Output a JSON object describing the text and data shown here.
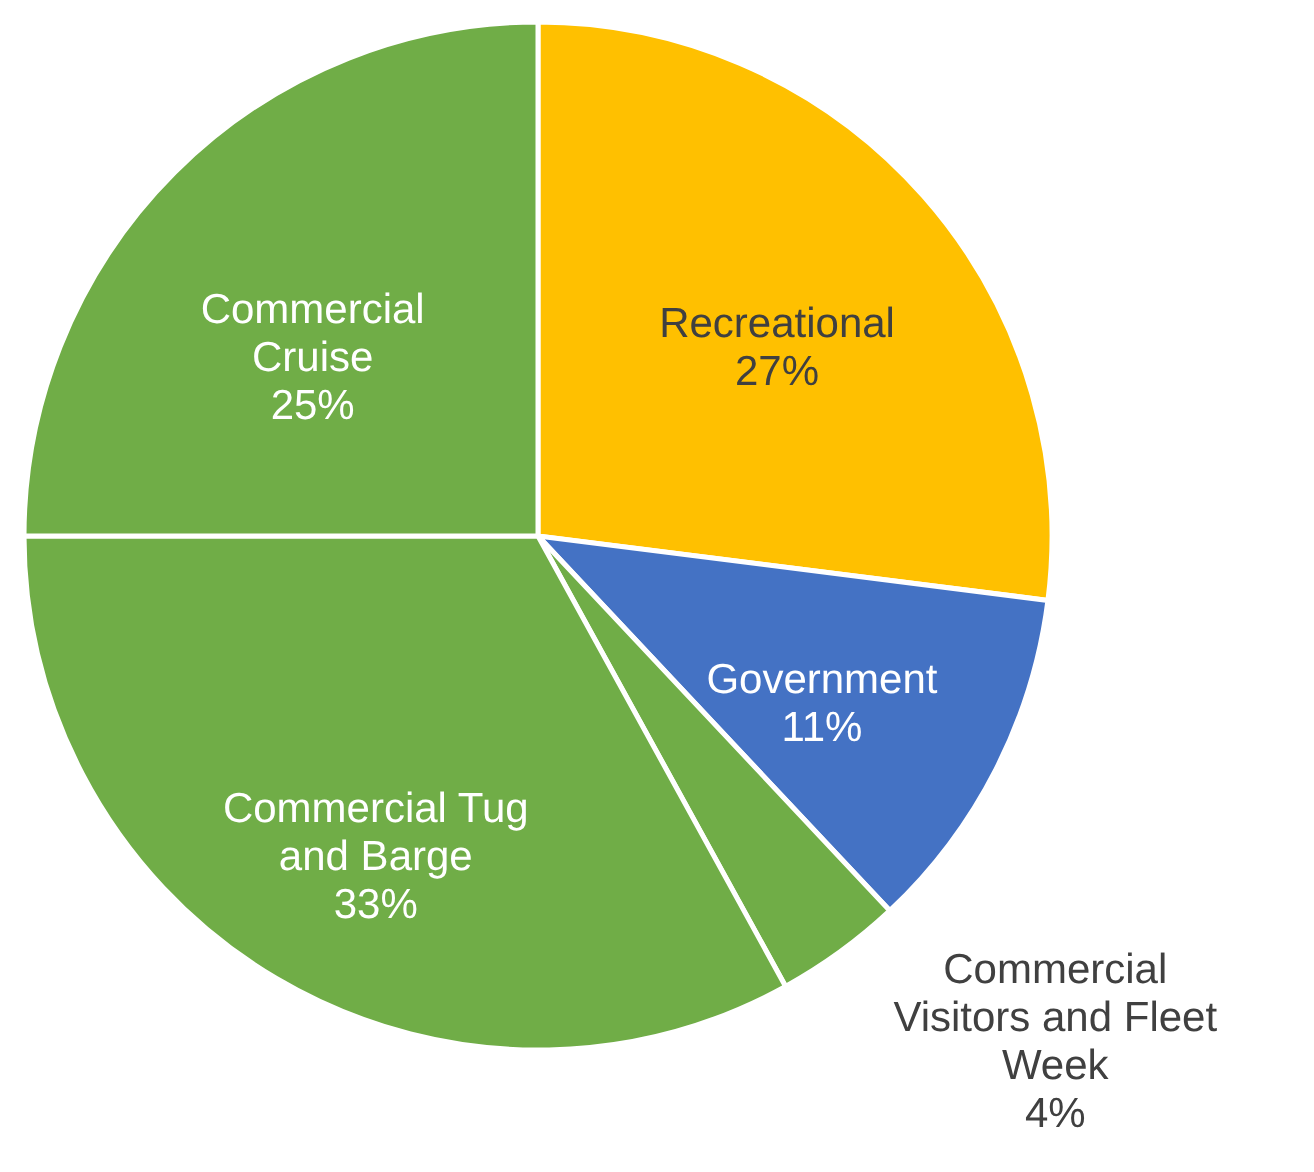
{
  "chart_data": {
    "type": "pie",
    "categories": [
      "Recreational",
      "Government",
      "Commercial Visitors and Fleet Week",
      "Commercial Tug and Barge",
      "Commercial Cruise"
    ],
    "values": [
      27,
      11,
      4,
      33,
      25
    ],
    "colors": [
      "#ffc000",
      "#4472c4",
      "#70ad47",
      "#70ad47",
      "#70ad47"
    ],
    "value_labels": [
      "27%",
      "11%",
      "4%",
      "33%",
      "25%"
    ]
  }
}
